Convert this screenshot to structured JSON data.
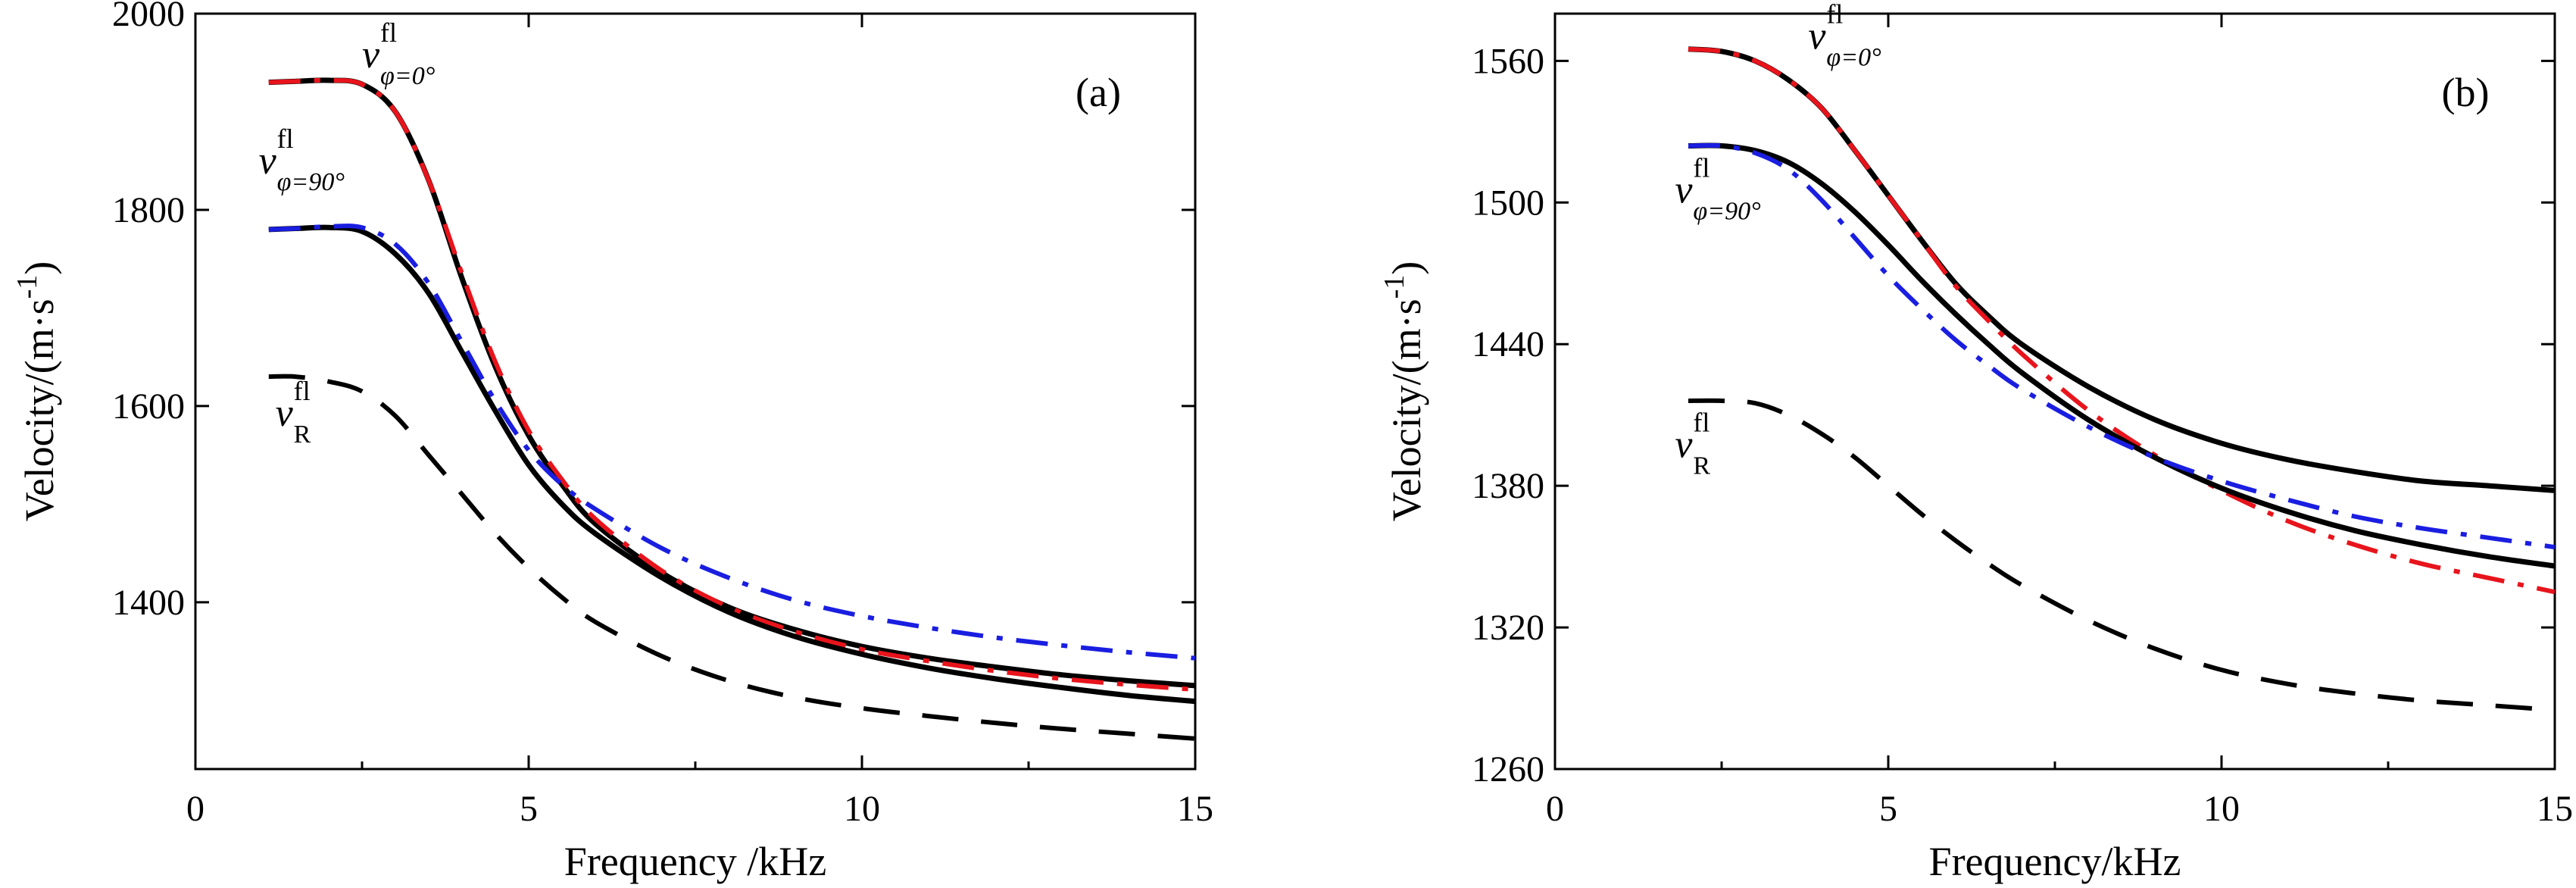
{
  "chart_data": [
    {
      "panel": "(a)",
      "type": "line",
      "xlabel": "Frequency /kHz",
      "ylabel": "Velocity/(m·s",
      "ylabel_exp": "-1",
      "ylabel_close": ")",
      "xlim": [
        0,
        15
      ],
      "ylim": [
        1230,
        2000
      ],
      "xticks": [
        0,
        5,
        10,
        15
      ],
      "yticks": [
        1400,
        1600,
        1800,
        2000
      ],
      "annotations": [
        {
          "main": "v",
          "sup": "fl",
          "sub": "φ=0°",
          "x": 2.5,
          "y": 1945
        },
        {
          "main": "v",
          "sup": "fl",
          "sub": "φ=90°",
          "x": 0.95,
          "y": 1837
        },
        {
          "main": "v",
          "sup": "fl",
          "sub": "R",
          "x": 1.2,
          "y": 1580
        }
      ],
      "series": [
        {
          "name": "black-solid-0",
          "color": "#000000",
          "dash": "solid",
          "width": 7,
          "x": [
            1.1,
            1.5,
            2,
            2.5,
            3,
            3.5,
            4,
            4.5,
            5,
            5.5,
            6,
            7,
            8,
            9,
            10,
            11,
            12,
            13,
            14,
            15
          ],
          "y": [
            1930,
            1931,
            1932,
            1928,
            1900,
            1830,
            1730,
            1640,
            1570,
            1520,
            1480,
            1430,
            1395,
            1372,
            1355,
            1343,
            1334,
            1326,
            1320,
            1315
          ]
        },
        {
          "name": "red-dashdot-0",
          "color": "#e8141c",
          "dash": "dashdot",
          "width": 6,
          "x": [
            1.1,
            1.5,
            2,
            2.5,
            3,
            3.5,
            4,
            4.5,
            5,
            5.5,
            6,
            7,
            8,
            9,
            10,
            11,
            12,
            13,
            14,
            15
          ],
          "y": [
            1930,
            1931,
            1932,
            1928,
            1900,
            1830,
            1735,
            1645,
            1575,
            1525,
            1485,
            1432,
            1395,
            1370,
            1352,
            1340,
            1330,
            1322,
            1316,
            1311
          ]
        },
        {
          "name": "black-solid-90",
          "color": "#000000",
          "dash": "solid",
          "width": 7,
          "x": [
            1.1,
            1.5,
            2,
            2.5,
            3,
            3.5,
            4,
            4.5,
            5,
            5.5,
            6,
            7,
            8,
            9,
            10,
            11,
            12,
            13,
            14,
            15
          ],
          "y": [
            1780,
            1781,
            1782,
            1778,
            1755,
            1715,
            1655,
            1595,
            1540,
            1500,
            1470,
            1425,
            1390,
            1365,
            1347,
            1333,
            1322,
            1313,
            1305,
            1299
          ]
        },
        {
          "name": "blue-dashdot-90",
          "color": "#1a1ee0",
          "dash": "dashdot",
          "width": 6,
          "x": [
            1.1,
            1.5,
            2,
            2.5,
            3,
            3.5,
            4,
            4.5,
            5,
            5.5,
            6,
            7,
            8,
            9,
            10,
            11,
            12,
            13,
            14,
            15
          ],
          "y": [
            1780,
            1781,
            1783,
            1782,
            1765,
            1725,
            1665,
            1605,
            1555,
            1520,
            1495,
            1455,
            1425,
            1402,
            1386,
            1374,
            1364,
            1356,
            1349,
            1343
          ]
        },
        {
          "name": "black-dashed-R",
          "color": "#000000",
          "dash": "dashed",
          "width": 6,
          "x": [
            1.1,
            1.5,
            2,
            2.5,
            3,
            3.5,
            4,
            4.5,
            5,
            5.5,
            6,
            7,
            8,
            9,
            10,
            11,
            12,
            13,
            14,
            15
          ],
          "y": [
            1630,
            1630,
            1625,
            1615,
            1590,
            1550,
            1510,
            1470,
            1435,
            1405,
            1380,
            1345,
            1320,
            1303,
            1292,
            1284,
            1277,
            1271,
            1266,
            1261
          ]
        }
      ]
    },
    {
      "panel": "(b)",
      "type": "line",
      "xlabel": "Frequency/kHz",
      "ylabel": "Velocity/(m·s",
      "ylabel_exp": "-1",
      "ylabel_close": ")",
      "xlim": [
        0,
        15
      ],
      "ylim": [
        1260,
        1580
      ],
      "xticks": [
        0,
        5,
        10,
        15
      ],
      "yticks": [
        1260,
        1320,
        1380,
        1440,
        1500,
        1560
      ],
      "annotations": [
        {
          "main": "v",
          "sup": "fl",
          "sub": "φ=0°",
          "x": 3.8,
          "y": 1565
        },
        {
          "main": "v",
          "sup": "fl",
          "sub": "φ=90°",
          "x": 1.8,
          "y": 1500
        },
        {
          "main": "v",
          "sup": "fl",
          "sub": "R",
          "x": 1.8,
          "y": 1392
        }
      ],
      "series": [
        {
          "name": "black-solid-0",
          "color": "#000000",
          "dash": "solid",
          "width": 7,
          "x": [
            2,
            2.5,
            3,
            3.5,
            4,
            4.5,
            5,
            5.5,
            6,
            6.5,
            7,
            8,
            9,
            10,
            11,
            12,
            13,
            14,
            15
          ],
          "y": [
            1565,
            1564,
            1560,
            1552,
            1540,
            1522,
            1503,
            1484,
            1466,
            1452,
            1440,
            1422,
            1408,
            1398,
            1391,
            1386,
            1382,
            1380,
            1378
          ]
        },
        {
          "name": "red-dashdot-0",
          "color": "#e8141c",
          "dash": "dashdot",
          "width": 6,
          "x": [
            2,
            2.5,
            3,
            3.5,
            4,
            4.5,
            5,
            5.5,
            6,
            6.5,
            7,
            8,
            9,
            10,
            11,
            12,
            13,
            14,
            15
          ],
          "y": [
            1565,
            1564,
            1560,
            1552,
            1540,
            1522,
            1503,
            1484,
            1465,
            1450,
            1436,
            1412,
            1393,
            1378,
            1365,
            1355,
            1347,
            1341,
            1335
          ]
        },
        {
          "name": "black-solid-90",
          "color": "#000000",
          "dash": "solid",
          "width": 7,
          "x": [
            2,
            2.5,
            3,
            3.5,
            4,
            4.5,
            5,
            5.5,
            6,
            6.5,
            7,
            8,
            9,
            10,
            11,
            12,
            13,
            14,
            15
          ],
          "y": [
            1524,
            1524,
            1522,
            1517,
            1508,
            1496,
            1482,
            1467,
            1453,
            1440,
            1428,
            1408,
            1392,
            1379,
            1369,
            1361,
            1355,
            1350,
            1346
          ]
        },
        {
          "name": "blue-dashdot-90",
          "color": "#1a1ee0",
          "dash": "dashdot",
          "width": 6,
          "x": [
            2,
            2.5,
            3,
            3.5,
            4,
            4.5,
            5,
            5.5,
            6,
            6.5,
            7,
            8,
            9,
            10,
            11,
            12,
            13,
            14,
            15
          ],
          "y": [
            1524,
            1524,
            1521,
            1514,
            1501,
            1485,
            1469,
            1455,
            1442,
            1431,
            1421,
            1405,
            1392,
            1382,
            1374,
            1367,
            1362,
            1358,
            1354
          ]
        },
        {
          "name": "black-dashed-R",
          "color": "#000000",
          "dash": "dashed",
          "width": 6,
          "x": [
            2,
            2.5,
            3,
            3.5,
            4,
            4.5,
            5,
            5.5,
            6,
            6.5,
            7,
            8,
            9,
            10,
            11,
            12,
            13,
            14,
            15
          ],
          "y": [
            1416,
            1416,
            1415,
            1410,
            1402,
            1392,
            1380,
            1368,
            1357,
            1347,
            1338,
            1323,
            1311,
            1302,
            1296,
            1292,
            1289,
            1287,
            1285
          ]
        }
      ]
    }
  ]
}
